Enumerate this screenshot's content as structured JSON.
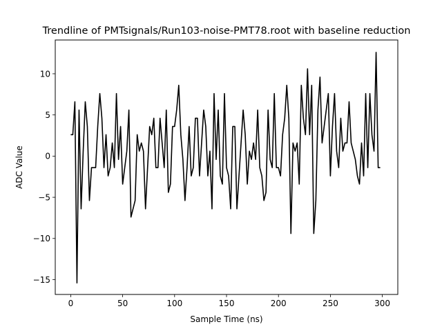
{
  "chart_data": {
    "type": "line",
    "title": "Trendline of PMTsignals/Run103-noise-PMT78.root with baseline reduction",
    "xlabel": "Sample Time (ns)",
    "ylabel": "ADC Value",
    "xlim": [
      -14.9,
      314.9
    ],
    "ylim": [
      -16.8,
      14.1
    ],
    "x_ticks": [
      0,
      50,
      100,
      150,
      200,
      250,
      300
    ],
    "y_ticks": [
      -15,
      -10,
      -5,
      0,
      5,
      10
    ],
    "grid": false,
    "legend": "none",
    "line_color": "#000000",
    "series": [
      {
        "x": [
          0,
          2,
          4,
          6,
          8,
          10,
          12,
          14,
          16,
          18,
          20,
          22,
          24,
          26,
          28,
          30,
          32,
          34,
          36,
          38,
          40,
          42,
          44,
          46,
          48,
          50,
          52,
          54,
          56,
          58,
          60,
          62,
          64,
          66,
          68,
          70,
          72,
          74,
          76,
          78,
          80,
          82,
          84,
          86,
          88,
          90,
          92,
          94,
          96,
          98,
          100,
          102,
          104,
          106,
          108,
          110,
          112,
          114,
          116,
          118,
          120,
          122,
          124,
          126,
          128,
          130,
          132,
          134,
          136,
          138,
          140,
          142,
          144,
          146,
          148,
          150,
          152,
          154,
          156,
          158,
          160,
          162,
          164,
          166,
          168,
          170,
          172,
          174,
          176,
          178,
          180,
          182,
          184,
          186,
          188,
          190,
          192,
          194,
          196,
          198,
          200,
          202,
          204,
          206,
          208,
          210,
          212,
          214,
          216,
          218,
          220,
          222,
          224,
          226,
          228,
          230,
          232,
          234,
          236,
          238,
          240,
          242,
          244,
          246,
          248,
          250,
          252,
          254,
          256,
          258,
          260,
          262,
          264,
          266,
          268,
          270,
          272,
          274,
          276,
          278,
          280,
          282,
          284,
          286,
          288,
          290,
          292,
          294,
          296,
          298
        ],
        "y": [
          2.6,
          2.6,
          6.6,
          -15.4,
          5.6,
          -6.4,
          0.6,
          6.6,
          3.6,
          -5.4,
          -1.4,
          -1.4,
          -1.4,
          3.6,
          7.6,
          4.6,
          -1.4,
          2.6,
          -2.4,
          -1.4,
          1.6,
          -1.4,
          7.6,
          -0.4,
          3.6,
          -3.4,
          -1.4,
          0.6,
          5.6,
          -7.4,
          -6.4,
          -5.4,
          2.6,
          0.6,
          1.6,
          0.6,
          -6.4,
          -1.4,
          3.6,
          2.6,
          4.6,
          -1.4,
          -1.4,
          4.6,
          1.6,
          -1.4,
          5.6,
          -4.4,
          -3.4,
          3.6,
          3.6,
          5.6,
          8.6,
          2.6,
          -0.4,
          -5.4,
          -1.4,
          3.6,
          -2.4,
          -1.4,
          4.6,
          4.6,
          -2.4,
          1.6,
          5.6,
          3.6,
          -2.4,
          0.6,
          -6.4,
          7.6,
          -0.4,
          5.6,
          -2.4,
          -3.4,
          7.6,
          -1.4,
          -2.4,
          -6.4,
          3.6,
          3.6,
          -6.4,
          -2.4,
          1.6,
          5.6,
          2.6,
          -3.4,
          0.6,
          -0.4,
          1.6,
          -0.4,
          5.6,
          -1.4,
          -2.4,
          -5.4,
          -4.4,
          5.6,
          -0.4,
          -1.4,
          7.6,
          -1.4,
          -1.4,
          -2.4,
          2.6,
          4.6,
          8.6,
          4.6,
          -9.4,
          1.6,
          0.6,
          1.6,
          -3.4,
          8.6,
          4.6,
          2.6,
          10.6,
          2.6,
          8.6,
          -9.4,
          -5.4,
          5.6,
          9.6,
          1.6,
          3.6,
          5.6,
          7.6,
          -2.4,
          3.6,
          7.6,
          0.6,
          -1.4,
          4.6,
          0.6,
          1.6,
          1.6,
          6.6,
          1.6,
          0.6,
          -0.4,
          -2.4,
          -3.4,
          1.6,
          -2.4,
          7.6,
          -1.4,
          7.6,
          2.6,
          0.6,
          12.6,
          -1.4,
          -1.4
        ]
      }
    ]
  }
}
